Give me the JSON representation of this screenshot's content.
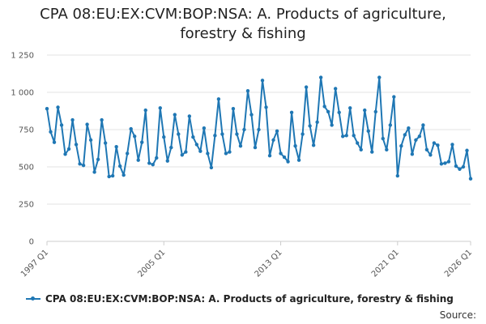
{
  "chart_data": {
    "type": "line",
    "title_line1": "CPA 08:EU:EX:CVM:BOP:NSA: A. Products of agriculture,",
    "title_line2": "forestry & fishing",
    "xlabel": "",
    "ylabel": "",
    "ylim": [
      0,
      1250
    ],
    "yticks": [
      0,
      250,
      500,
      750,
      1000,
      1250
    ],
    "ytick_labels": [
      "0",
      "250",
      "500",
      "750",
      "1 000",
      "1 250"
    ],
    "xticks": [
      {
        "label": "1997 Q1",
        "index": 0
      },
      {
        "label": "2005 Q1",
        "index": 32
      },
      {
        "label": "2013 Q1",
        "index": 64
      },
      {
        "label": "2021 Q1",
        "index": 96
      },
      {
        "label": "2026 Q1",
        "index": 116
      }
    ],
    "legend_position": "bottom",
    "series": [
      {
        "name": "CPA 08:EU:EX:CVM:BOP:NSA: A. Products of agriculture, forestry & fishing",
        "color": "#1f77b4",
        "start": "1997 Q1",
        "frequency": "quarterly",
        "values": [
          890,
          735,
          665,
          900,
          780,
          585,
          620,
          815,
          650,
          520,
          510,
          785,
          680,
          465,
          550,
          815,
          660,
          435,
          440,
          635,
          505,
          445,
          590,
          755,
          705,
          545,
          665,
          880,
          525,
          515,
          560,
          895,
          700,
          540,
          630,
          850,
          720,
          580,
          600,
          840,
          700,
          650,
          605,
          760,
          590,
          495,
          710,
          955,
          720,
          590,
          600,
          890,
          720,
          640,
          750,
          1010,
          850,
          630,
          750,
          1080,
          900,
          575,
          680,
          740,
          590,
          565,
          535,
          865,
          640,
          545,
          720,
          1035,
          775,
          645,
          800,
          1100,
          905,
          870,
          780,
          1025,
          865,
          705,
          710,
          895,
          710,
          660,
          615,
          880,
          740,
          600,
          870,
          1100,
          690,
          615,
          780,
          970,
          440,
          640,
          715,
          760,
          585,
          680,
          705,
          780,
          615,
          580,
          660,
          645,
          520,
          525,
          535,
          650,
          505,
          485,
          500,
          610,
          420
        ]
      }
    ]
  },
  "source_label": "Source:"
}
